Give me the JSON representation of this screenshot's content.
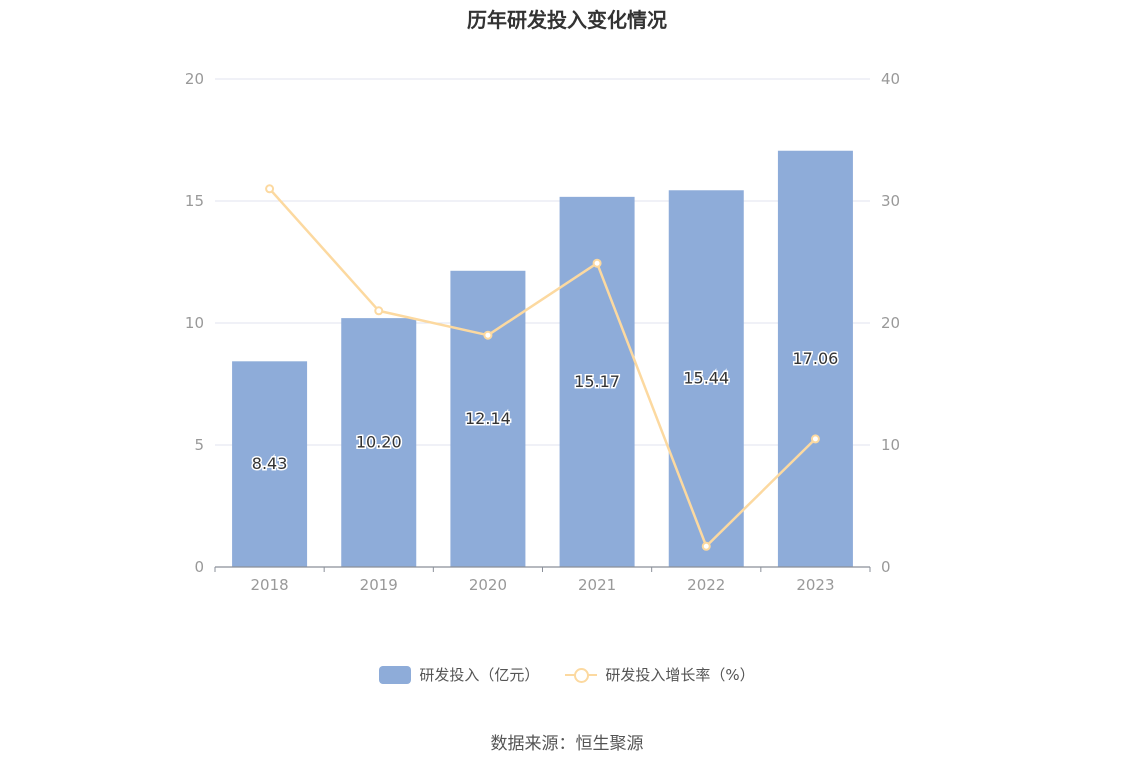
{
  "chart_data": {
    "type": "bar",
    "title": "历年研发投入变化情况",
    "categories": [
      "2018",
      "2019",
      "2020",
      "2021",
      "2022",
      "2023"
    ],
    "series": [
      {
        "name": "研发投入（亿元）",
        "type": "bar",
        "axis": "left",
        "color": "#8eacd9",
        "values": [
          8.43,
          10.2,
          12.14,
          15.17,
          15.44,
          17.06
        ],
        "labels": [
          "8.43",
          "10.20",
          "12.14",
          "15.17",
          "15.44",
          "17.06"
        ]
      },
      {
        "name": "研发投入增长率（%）",
        "type": "line",
        "axis": "right",
        "color": "#fcd9a0",
        "values": [
          31.0,
          21.0,
          19.0,
          24.9,
          1.7,
          10.5
        ]
      }
    ],
    "y_left": {
      "range": [
        0,
        20
      ],
      "ticks": [
        "0",
        "5",
        "10",
        "15",
        "20"
      ]
    },
    "y_right": {
      "range": [
        0,
        40
      ],
      "ticks": [
        "0",
        "10",
        "20",
        "30",
        "40"
      ]
    },
    "grid": true,
    "legend_position": "bottom"
  },
  "source": "数据来源：恒生聚源"
}
